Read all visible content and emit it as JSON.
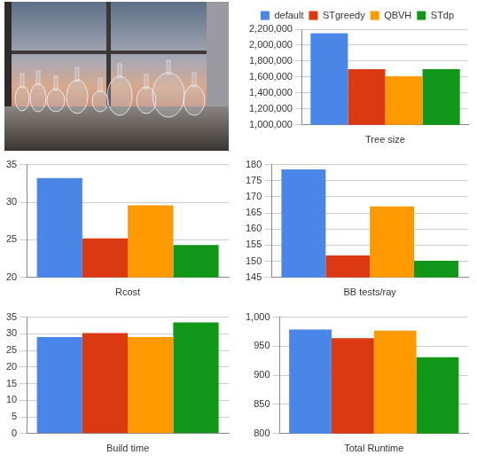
{
  "chart_data": [
    {
      "type": "bar",
      "categories": [
        "Tree size"
      ],
      "series": [
        {
          "name": "default",
          "color": "#4a86e8",
          "values": [
            2150000
          ]
        },
        {
          "name": "STgreedy",
          "color": "#dc3912",
          "values": [
            1700000
          ]
        },
        {
          "name": "QBVH",
          "color": "#ff9900",
          "values": [
            1610000
          ]
        },
        {
          "name": "STdp",
          "color": "#109618",
          "values": [
            1700000
          ]
        }
      ],
      "ylim": [
        1000000,
        2200000
      ],
      "yticks": [
        {
          "value": 1000000,
          "label": "1,000,000"
        },
        {
          "value": 1200000,
          "label": "1,200,000"
        },
        {
          "value": 1400000,
          "label": "1,400,000"
        },
        {
          "value": 1600000,
          "label": "1,600,000"
        },
        {
          "value": 1800000,
          "label": "1,800,000"
        },
        {
          "value": 2000000,
          "label": "2,000,000"
        },
        {
          "value": 2200000,
          "label": "2,200,000"
        }
      ],
      "grid": true,
      "legend": "top"
    },
    {
      "type": "bar",
      "categories": [
        "Rcost"
      ],
      "series": [
        {
          "color": "#4a86e8",
          "values": [
            33.2
          ]
        },
        {
          "color": "#dc3912",
          "values": [
            25.2
          ]
        },
        {
          "color": "#ff9900",
          "values": [
            29.6
          ]
        },
        {
          "color": "#109618",
          "values": [
            24.3
          ]
        }
      ],
      "ylim": [
        20,
        35
      ],
      "yticks": [
        20,
        25,
        30,
        35
      ],
      "grid": true
    },
    {
      "type": "bar",
      "categories": [
        "BB tests/ray"
      ],
      "series": [
        {
          "color": "#4a86e8",
          "values": [
            178.5
          ]
        },
        {
          "color": "#dc3912",
          "values": [
            151.8
          ]
        },
        {
          "color": "#ff9900",
          "values": [
            167
          ]
        },
        {
          "color": "#109618",
          "values": [
            150.2
          ]
        }
      ],
      "ylim": [
        145,
        180
      ],
      "yticks": [
        145,
        150,
        155,
        160,
        165,
        170,
        175,
        180
      ],
      "grid": true
    },
    {
      "type": "bar",
      "categories": [
        "Build time"
      ],
      "series": [
        {
          "color": "#4a86e8",
          "values": [
            29
          ]
        },
        {
          "color": "#dc3912",
          "values": [
            30.2
          ]
        },
        {
          "color": "#ff9900",
          "values": [
            29
          ]
        },
        {
          "color": "#109618",
          "values": [
            33.4
          ]
        }
      ],
      "ylim": [
        0,
        35
      ],
      "yticks": [
        0,
        5,
        10,
        15,
        20,
        25,
        30,
        35
      ],
      "grid": true
    },
    {
      "type": "bar",
      "categories": [
        "Total Runtime"
      ],
      "series": [
        {
          "color": "#4a86e8",
          "values": [
            979
          ]
        },
        {
          "color": "#dc3912",
          "values": [
            964
          ]
        },
        {
          "color": "#ff9900",
          "values": [
            977
          ]
        },
        {
          "color": "#109618",
          "values": [
            931
          ]
        }
      ],
      "ylim": [
        800,
        1000
      ],
      "yticks": [
        800,
        850,
        900,
        950,
        {
          "value": 1000,
          "label": "1,000"
        }
      ],
      "grid": true
    }
  ]
}
